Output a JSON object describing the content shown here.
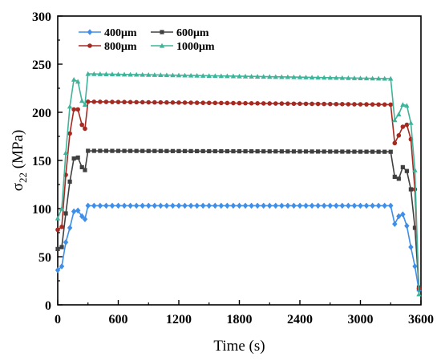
{
  "chart_data": {
    "type": "line",
    "xlabel": "Time (s)",
    "ylabel": {
      "base": "σ",
      "sub": "22",
      "rest": " (MPa)"
    },
    "xlim": [
      0,
      3600
    ],
    "ylim": [
      0,
      300
    ],
    "xticks": [
      "0",
      "600",
      "1200",
      "1800",
      "2400",
      "3000",
      "3600"
    ],
    "yticks": [
      "0",
      "50",
      "100",
      "150",
      "200",
      "250",
      "300"
    ],
    "grid": false,
    "legend_position": "top-left",
    "series": [
      {
        "name": "400μm",
        "color": "#3f8ee8",
        "marker": "diamond",
        "points": [
          [
            0,
            36
          ],
          [
            40,
            40
          ],
          [
            80,
            65
          ],
          [
            120,
            80
          ],
          [
            160,
            97
          ],
          [
            200,
            98
          ],
          [
            240,
            92
          ],
          [
            270,
            89
          ],
          [
            300,
            103
          ],
          [
            3300,
            103
          ],
          [
            3340,
            84
          ],
          [
            3380,
            92
          ],
          [
            3420,
            94
          ],
          [
            3460,
            82
          ],
          [
            3500,
            60
          ],
          [
            3540,
            40
          ],
          [
            3580,
            15
          ]
        ]
      },
      {
        "name": "600μm",
        "color": "#404040",
        "marker": "square",
        "points": [
          [
            0,
            58
          ],
          [
            40,
            60
          ],
          [
            80,
            95
          ],
          [
            120,
            128
          ],
          [
            160,
            152
          ],
          [
            200,
            153
          ],
          [
            240,
            143
          ],
          [
            270,
            140
          ],
          [
            300,
            160
          ],
          [
            3300,
            159
          ],
          [
            3340,
            133
          ],
          [
            3380,
            131
          ],
          [
            3420,
            143
          ],
          [
            3460,
            139
          ],
          [
            3500,
            120
          ],
          [
            3540,
            80
          ],
          [
            3580,
            18
          ]
        ]
      },
      {
        "name": "800μm",
        "color": "#a52a22",
        "marker": "circle",
        "points": [
          [
            0,
            78
          ],
          [
            40,
            81
          ],
          [
            80,
            135
          ],
          [
            120,
            178
          ],
          [
            160,
            203
          ],
          [
            200,
            203
          ],
          [
            240,
            187
          ],
          [
            270,
            183
          ],
          [
            300,
            211
          ],
          [
            3300,
            208
          ],
          [
            3340,
            168
          ],
          [
            3380,
            176
          ],
          [
            3420,
            185
          ],
          [
            3460,
            187
          ],
          [
            3500,
            172
          ],
          [
            3540,
            120
          ],
          [
            3580,
            17
          ]
        ]
      },
      {
        "name": "1000μm",
        "color": "#3fb49a",
        "marker": "triangle",
        "points": [
          [
            0,
            90
          ],
          [
            40,
            100
          ],
          [
            80,
            158
          ],
          [
            120,
            206
          ],
          [
            160,
            234
          ],
          [
            200,
            232
          ],
          [
            240,
            212
          ],
          [
            270,
            208
          ],
          [
            300,
            240
          ],
          [
            3300,
            235
          ],
          [
            3340,
            192
          ],
          [
            3380,
            198
          ],
          [
            3420,
            208
          ],
          [
            3460,
            207
          ],
          [
            3500,
            189
          ],
          [
            3540,
            140
          ],
          [
            3580,
            11
          ]
        ]
      }
    ]
  }
}
